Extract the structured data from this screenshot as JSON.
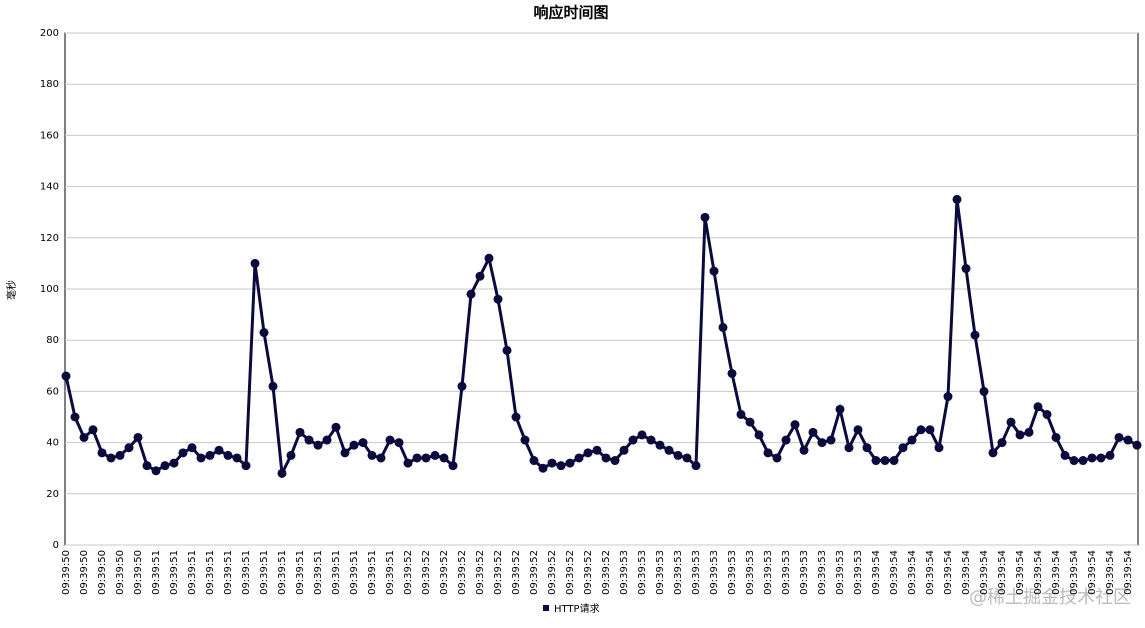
{
  "chart_data": {
    "type": "line",
    "title": "响应时间图",
    "y_label": "毫秒",
    "categories": [
      "09:39:50",
      null,
      "09:39:50",
      null,
      "09:39:50",
      null,
      "09:39:50",
      null,
      "09:39:50",
      null,
      "09:39:51",
      null,
      "09:39:51",
      null,
      "09:39:51",
      null,
      "09:39:51",
      null,
      "09:39:51",
      null,
      "09:39:51",
      null,
      "09:39:51",
      null,
      "09:39:51",
      null,
      "09:39:51",
      null,
      "09:39:51",
      null,
      "09:39:51",
      null,
      "09:39:51",
      null,
      "09:39:51",
      null,
      "09:39:51",
      null,
      "09:39:52",
      null,
      "09:39:52",
      null,
      "09:39:52",
      null,
      "09:39:52",
      null,
      "09:39:52",
      null,
      "09:39:52",
      null,
      "09:39:52",
      null,
      "09:39:52",
      null,
      "09:39:52",
      null,
      "09:39:52",
      null,
      "09:39:52",
      null,
      "09:39:52",
      null,
      "09:39:53",
      null,
      "09:39:53",
      null,
      "09:39:53",
      null,
      "09:39:53",
      null,
      "09:39:53",
      null,
      "09:39:53",
      null,
      "09:39:53",
      null,
      "09:39:53",
      null,
      "09:39:53",
      null,
      "09:39:53",
      null,
      "09:39:53",
      null,
      "09:39:53",
      null,
      "09:39:53",
      null,
      "09:39:53",
      null,
      "09:39:54",
      null,
      "09:39:54",
      null,
      "09:39:54",
      null,
      "09:39:54",
      null,
      "09:39:54",
      null,
      "09:39:54",
      null,
      "09:39:54",
      null,
      "09:39:54",
      null,
      "09:39:54",
      null,
      "09:39:54",
      null,
      "09:39:54",
      null,
      "09:39:54",
      null,
      "09:39:54",
      null,
      "09:39:54",
      null,
      "09:39:54",
      null
    ],
    "series": [
      {
        "name": "HTTP请求",
        "color": "#0a0a3c",
        "values": [
          66,
          50,
          42,
          45,
          36,
          34,
          35,
          38,
          42,
          31,
          29,
          31,
          32,
          36,
          38,
          34,
          35,
          37,
          35,
          34,
          31,
          110,
          83,
          62,
          28,
          35,
          44,
          41,
          39,
          41,
          46,
          36,
          39,
          40,
          35,
          34,
          41,
          40,
          32,
          34,
          34,
          35,
          34,
          31,
          62,
          98,
          105,
          112,
          96,
          76,
          50,
          41,
          33,
          30,
          32,
          31,
          32,
          34,
          36,
          37,
          34,
          33,
          37,
          41,
          43,
          41,
          39,
          37,
          35,
          34,
          31,
          128,
          107,
          85,
          67,
          51,
          48,
          43,
          36,
          34,
          41,
          47,
          37,
          44,
          40,
          41,
          53,
          38,
          45,
          38,
          33,
          33,
          33,
          38,
          41,
          45,
          45,
          38,
          58,
          135,
          108,
          82,
          60,
          36,
          40,
          48,
          43,
          44,
          54,
          51,
          42,
          35,
          33,
          33,
          34,
          34,
          35,
          42,
          41,
          39
        ]
      }
    ],
    "ylim": [
      0,
      200
    ],
    "yticks": [
      0,
      20,
      40,
      60,
      80,
      100,
      120,
      140,
      160,
      180,
      200
    ],
    "grid": true
  },
  "watermark": "@稀土掘金技术社区"
}
